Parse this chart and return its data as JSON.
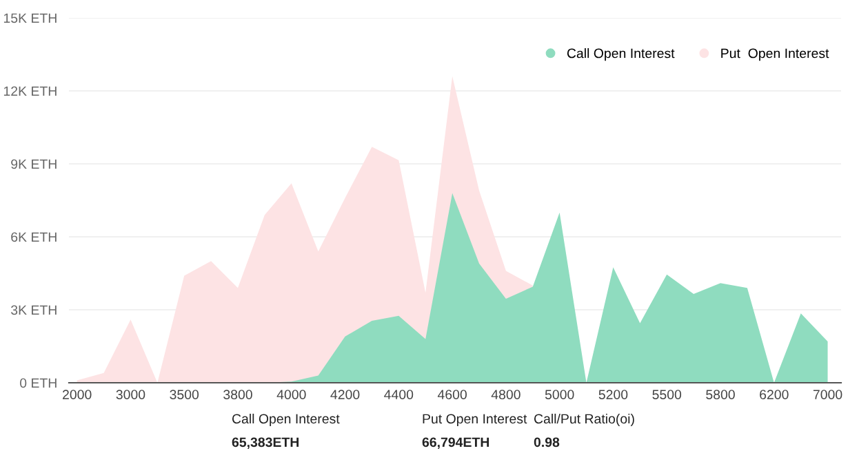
{
  "chart_data": {
    "type": "area",
    "categories": [
      "2000",
      null,
      "3000",
      null,
      "3500",
      null,
      "3800",
      null,
      "4000",
      null,
      "4200",
      null,
      "4400",
      null,
      "4600",
      null,
      "4800",
      null,
      "5000",
      null,
      "5200",
      null,
      "5500",
      null,
      "5800",
      null,
      "6200",
      null,
      "7000"
    ],
    "series": [
      {
        "name": "Put  Open Interest",
        "color": "#fde3e4",
        "values": [
          100,
          400,
          2600,
          0,
          4400,
          5000,
          3900,
          6900,
          8200,
          5400,
          7600,
          9700,
          9150,
          3700,
          12600,
          7900,
          4600,
          4000,
          null,
          null,
          null,
          null,
          null,
          null,
          null,
          null,
          null,
          null,
          null
        ]
      },
      {
        "name": "Call Open Interest",
        "color": "#8fdcbf",
        "values": [
          0,
          0,
          0,
          0,
          0,
          0,
          0,
          0,
          50,
          300,
          1900,
          2550,
          2750,
          1800,
          7800,
          4900,
          3450,
          3950,
          7000,
          0,
          4750,
          2450,
          4450,
          3650,
          4100,
          3900,
          0,
          2850,
          1700
        ]
      }
    ],
    "ylim": [
      0,
      15000
    ],
    "yticks": [
      {
        "value": 0,
        "label": "0 ETH"
      },
      {
        "value": 3000,
        "label": "3K ETH"
      },
      {
        "value": 6000,
        "label": "6K ETH"
      },
      {
        "value": 9000,
        "label": "9K ETH"
      },
      {
        "value": 12000,
        "label": "12K ETH"
      },
      {
        "value": 15000,
        "label": "15K ETH"
      }
    ],
    "grid": "y",
    "legend": "top right",
    "annotations": [
      "Call Open Interest",
      "65,383ETH",
      "Put Open Interest",
      "66,794ETH",
      "Call/Put Ratio(oi)",
      "0.98"
    ]
  }
}
